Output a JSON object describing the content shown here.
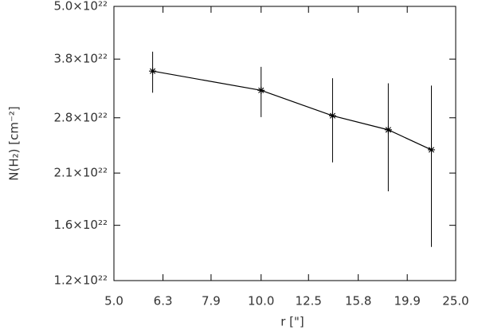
{
  "chart_data": {
    "type": "line",
    "xlabel": "r [\"]",
    "ylabel": "N(H₂) [cm⁻²]",
    "x": [
      6.0,
      10.0,
      14.0,
      18.2,
      22.3
    ],
    "series": [
      {
        "color": "#000000",
        "values": [
          3.57e+22,
          3.23e+22,
          2.83e+22,
          2.63e+22,
          2.37e+22
        ],
        "errors": [
          3.8e+21,
          4.2e+21,
          6.1e+21,
          7.2e+21,
          9.4e+21
        ]
      }
    ],
    "xlog": true,
    "ylog": true,
    "xlim": [
      5.0,
      25.0
    ],
    "ylim": [
      1.2e+22,
      5e+22
    ],
    "xticks": [
      {
        "value": 5.0,
        "label": "5.0"
      },
      6.3,
      7.9,
      {
        "value": 10.0,
        "label": "10.0"
      },
      12.5,
      15.8,
      19.9,
      {
        "value": 25.0,
        "label": "25.0"
      }
    ],
    "yticks": [
      {
        "value": 1.2e+22,
        "label": "1.2×10²²"
      },
      {
        "value": 1.6e+22,
        "label": "1.6×10²²"
      },
      {
        "value": 2.1e+22,
        "label": "2.1×10²²"
      },
      {
        "value": 2.8e+22,
        "label": "2.8×10²²"
      },
      {
        "value": 3.8e+22,
        "label": "3.8×10²²"
      },
      {
        "value": 5e+22,
        "label": "5.0×10²²"
      }
    ]
  }
}
